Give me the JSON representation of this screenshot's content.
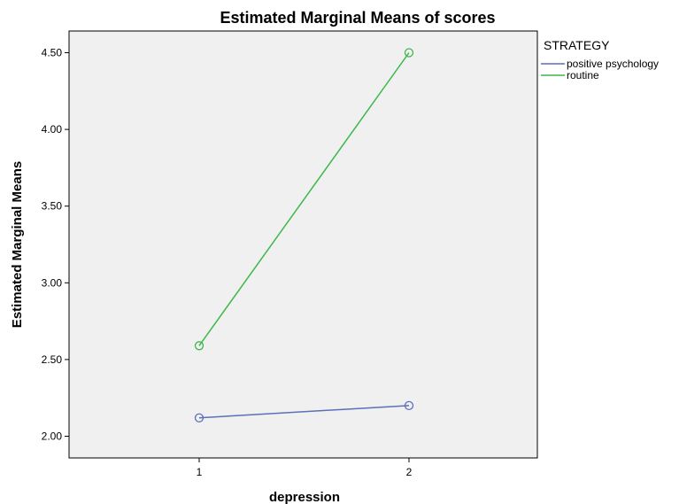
{
  "chart_data": {
    "type": "line",
    "title": "Estimated Marginal Means of scores",
    "xlabel": "depression",
    "ylabel": "Estimated Marginal Means",
    "x": [
      "1",
      "2"
    ],
    "ylim": [
      1.9,
      4.65
    ],
    "y_ticks": [
      "2.00",
      "2.50",
      "3.00",
      "3.50",
      "4.00",
      "4.50"
    ],
    "y_tick_values": [
      2.0,
      2.5,
      3.0,
      3.5,
      4.0,
      4.5
    ],
    "grid": false,
    "legend": {
      "title": "STRATEGY",
      "placement": "right"
    },
    "series": [
      {
        "name": "positive psychology",
        "color": "#5b6fbb",
        "values": [
          2.12,
          2.2
        ]
      },
      {
        "name": "routine",
        "color": "#3cb84a",
        "values": [
          2.59,
          4.5
        ]
      }
    ],
    "plot_background": "#f0f0f0"
  }
}
